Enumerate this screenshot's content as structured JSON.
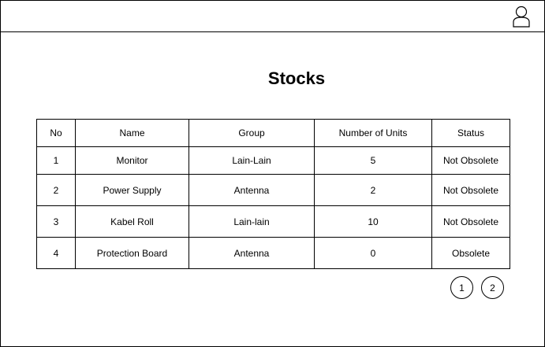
{
  "header": {
    "user_icon": "user-icon"
  },
  "page": {
    "title": "Stocks"
  },
  "table": {
    "columns": [
      "No",
      "Name",
      "Group",
      "Number of Units",
      "Status"
    ],
    "rows": [
      {
        "no": "1",
        "name": "Monitor",
        "group": "Lain-Lain",
        "units": "5",
        "status": "Not Obsolete"
      },
      {
        "no": "2",
        "name": "Power Supply",
        "group": "Antenna",
        "units": "2",
        "status": "Not Obsolete"
      },
      {
        "no": "3",
        "name": "Kabel Roll",
        "group": "Lain-lain",
        "units": "10",
        "status": "Not Obsolete"
      },
      {
        "no": "4",
        "name": "Protection Board",
        "group": "Antenna",
        "units": "0",
        "status": "Obsolete"
      }
    ]
  },
  "pagination": {
    "pages": [
      "1",
      "2"
    ]
  }
}
